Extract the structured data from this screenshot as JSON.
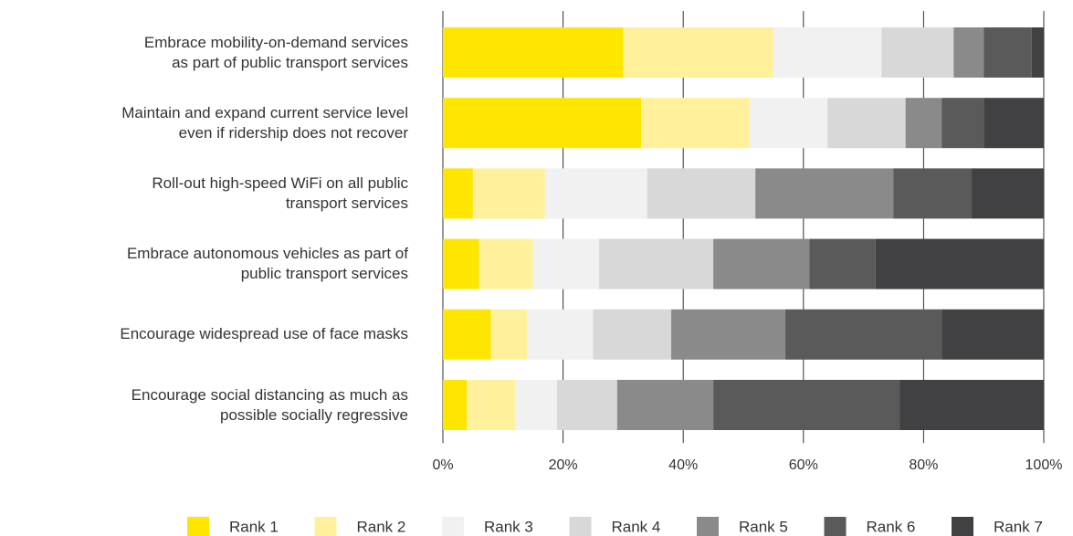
{
  "chart_data": {
    "type": "stacked-bar-horizontal",
    "categories": [
      "Embrace mobility-on-demand services\nas part of public transport services",
      "Maintain and expand current service level\neven if ridership does not recover",
      "Roll-out high-speed WiFi on all public\ntransport services",
      "Embrace autonomous vehicles as part of\npublic transport services",
      "Encourage widespread use of face masks",
      "Encourage social distancing as much as\npossible socially regressive"
    ],
    "series": [
      {
        "name": "Rank 1",
        "color": "#ffe600",
        "values": [
          30,
          33,
          5,
          6,
          8,
          4
        ]
      },
      {
        "name": "Rank 2",
        "color": "#fff19c",
        "values": [
          25,
          18,
          12,
          9,
          6,
          8
        ]
      },
      {
        "name": "Rank 3",
        "color": "#f1f1f1",
        "values": [
          18,
          13,
          17,
          11,
          11,
          7
        ]
      },
      {
        "name": "Rank 4",
        "color": "#d8d8d8",
        "values": [
          12,
          13,
          18,
          19,
          13,
          10
        ]
      },
      {
        "name": "Rank 5",
        "color": "#8a8a8a",
        "values": [
          5,
          6,
          23,
          16,
          19,
          16
        ]
      },
      {
        "name": "Rank 6",
        "color": "#5a5a5a",
        "values": [
          8,
          7,
          13,
          11,
          26,
          31
        ]
      },
      {
        "name": "Rank 7",
        "color": "#414042",
        "values": [
          2,
          10,
          12,
          28,
          17,
          24
        ]
      }
    ],
    "xlim": [
      0,
      100
    ],
    "xticks": [
      {
        "value": 0,
        "label": "0%"
      },
      {
        "value": 20,
        "label": "20%"
      },
      {
        "value": 40,
        "label": "40%"
      },
      {
        "value": 60,
        "label": "60%"
      },
      {
        "value": 80,
        "label": "80%"
      },
      {
        "value": 100,
        "label": "100%"
      }
    ],
    "grid": true,
    "legend": "bottom"
  }
}
